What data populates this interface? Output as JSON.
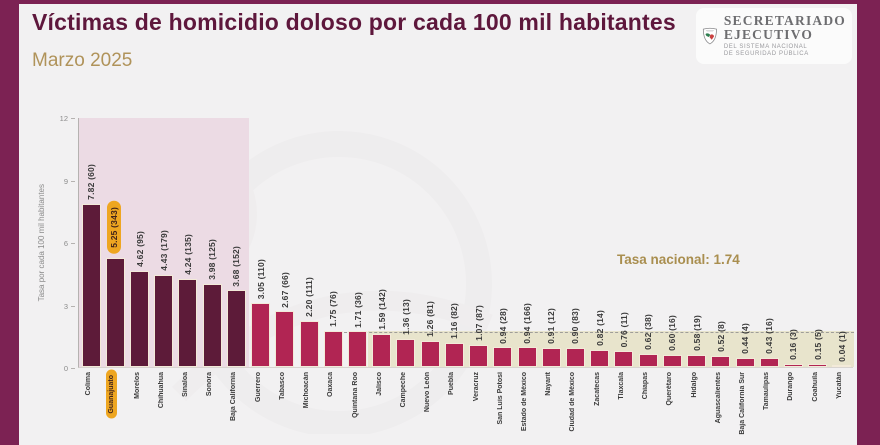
{
  "header": {
    "title": "Víctimas de homicidio doloso por cada 100 mil habitantes",
    "subtitle": "Marzo 2025"
  },
  "logo": {
    "org_line1": "SECRETARIADO",
    "org_line2": "EJECUTIVO",
    "sub_line1": "DEL SISTEMA NACIONAL",
    "sub_line2": "DE SEGURIDAD PÚBLICA"
  },
  "chart_data": {
    "type": "bar",
    "title": "Víctimas de homicidio doloso por cada 100 mil habitantes",
    "subtitle": "Marzo 2025",
    "ylabel": "Tasa por cada 100 mil habitantes",
    "ylim": [
      0,
      12
    ],
    "yticks": [
      0,
      3,
      6,
      9,
      12
    ],
    "grid": false,
    "national_rate": 1.74,
    "national_rate_label": "Tasa nacional: 1.74",
    "bar_label_format": "rate (victim_count)",
    "highlighted_state": "Guanajuato",
    "highlight_region_states": [
      "Colima",
      "Guanajuato",
      "Morelos",
      "Chihuahua",
      "Sinaloa",
      "Sonora",
      "Baja California"
    ],
    "categories": [
      "Colima",
      "Guanajuato",
      "Morelos",
      "Chihuahua",
      "Sinaloa",
      "Sonora",
      "Baja California",
      "Guerrero",
      "Tabasco",
      "Michoacán",
      "Oaxaca",
      "Quintana Roo",
      "Jalisco",
      "Campeche",
      "Nuevo León",
      "Puebla",
      "Veracruz",
      "San Luis Potosí",
      "Estado de México",
      "Nayarit",
      "Ciudad de México",
      "Zacatecas",
      "Tlaxcala",
      "Chiapas",
      "Querétaro",
      "Hidalgo",
      "Aguascalientes",
      "Baja California Sur",
      "Tamaulipas",
      "Durango",
      "Coahuila",
      "Yucatán"
    ],
    "values": [
      7.82,
      5.25,
      4.62,
      4.43,
      4.24,
      3.98,
      3.68,
      3.05,
      2.67,
      2.2,
      1.75,
      1.71,
      1.59,
      1.36,
      1.26,
      1.16,
      1.07,
      0.94,
      0.94,
      0.91,
      0.9,
      0.82,
      0.76,
      0.62,
      0.6,
      0.58,
      0.52,
      0.44,
      0.43,
      0.16,
      0.15,
      0.04
    ],
    "victim_counts": [
      60,
      343,
      95,
      179,
      135,
      125,
      152,
      110,
      66,
      111,
      76,
      36,
      142,
      13,
      81,
      82,
      87,
      28,
      166,
      12,
      83,
      14,
      11,
      38,
      16,
      19,
      8,
      4,
      16,
      3,
      5,
      1
    ]
  },
  "colors": {
    "frame": "#7c2253",
    "background": "#f2f1f2",
    "title_text": "#5e173c",
    "gold_text": "#b0935a",
    "national_text": "#a98e4f",
    "bar_dark": "#5d1b39",
    "bar_light": "#b12553",
    "region_pink": "#ecdbe4",
    "region_beige": "#e8e4cc",
    "highlight_orange": "#eea621",
    "dash_line": "#9f9d98"
  }
}
